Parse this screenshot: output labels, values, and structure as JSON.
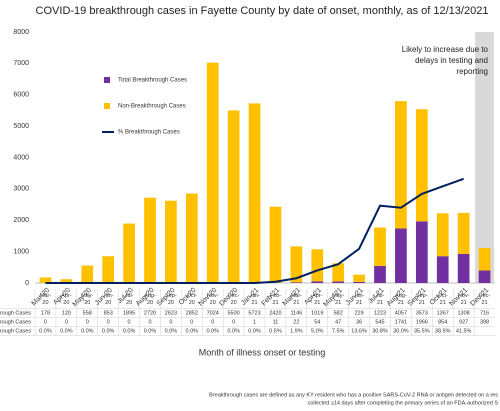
{
  "chart_data": {
    "type": "bar-line",
    "title": "COVID-19 breakthrough cases in Fayette County by date of onset, monthly, as of 12/13/2021",
    "x_label": "Month of illness onset or testing",
    "annotation": [
      "Likely to increase due to",
      "delays in testing and",
      "reporting"
    ],
    "footnote": [
      "Breakthrough cases are defined as any KY resident who has a positive SARS-CoV-2 RNA or antigen detected on a res",
      "collected ≥14 days after completing the primary series of an FDA-authorized S"
    ],
    "categories": [
      "Mar-20",
      "Apr-20",
      "May-20",
      "Jun-20",
      "Jul-20",
      "Aug-20",
      "Sep-20",
      "Oct-20",
      "Nov-20",
      "Dec-20",
      "Jan-21",
      "Feb-21",
      "Mar-21",
      "Apr-21",
      "May-21",
      "Jun-21",
      "Jul-21",
      "Aug-21",
      "Sep-21",
      "Oct-21",
      "Nov-21",
      "Dec-21"
    ],
    "series": [
      {
        "name": "Non-Breakthrough Cases",
        "color": "#ffc000",
        "values": [
          178,
          120,
          558,
          853,
          1895,
          2720,
          2623,
          2852,
          7024,
          5500,
          5723,
          2420,
          1146,
          1019,
          582,
          229,
          1223,
          4057,
          3573,
          1367,
          1308,
          716
        ]
      },
      {
        "name": "Total Breakthrough Cases",
        "color": "#7030a0",
        "values": [
          0,
          0,
          0,
          0,
          0,
          0,
          0,
          0,
          0,
          0,
          1,
          11,
          22,
          54,
          47,
          36,
          545,
          1741,
          1966,
          854,
          927,
          398
        ]
      },
      {
        "name": "% Breakthrough Cases",
        "color": "#002060",
        "axis": "y2",
        "values": [
          0.0,
          0.0,
          0.0,
          0.0,
          0.0,
          0.0,
          0.0,
          0.0,
          0.0,
          0.0,
          0.0,
          0.5,
          1.9,
          5.0,
          7.5,
          13.6,
          30.8,
          30.0,
          35.5,
          38.5,
          41.5,
          null
        ],
        "value_labels": [
          "0.0%",
          "0.0%",
          "0.0%",
          "0.0%",
          "0.0%",
          "0.0%",
          "0.0%",
          "0.0%",
          "0.0%",
          "0.0%",
          "0.0%",
          "0.5%",
          "1.9%",
          "5.0%",
          "7.5%",
          "13.6%",
          "30.8%",
          "30.0%",
          "35.5%",
          "38.5%",
          "41.5%",
          null
        ]
      }
    ],
    "ylim": [
      0,
      8000
    ],
    "yticks": [
      0,
      1000,
      2000,
      3000,
      4000,
      5000,
      6000,
      7000,
      8000
    ],
    "y2lim": [
      0,
      100
    ],
    "grid": false
  }
}
